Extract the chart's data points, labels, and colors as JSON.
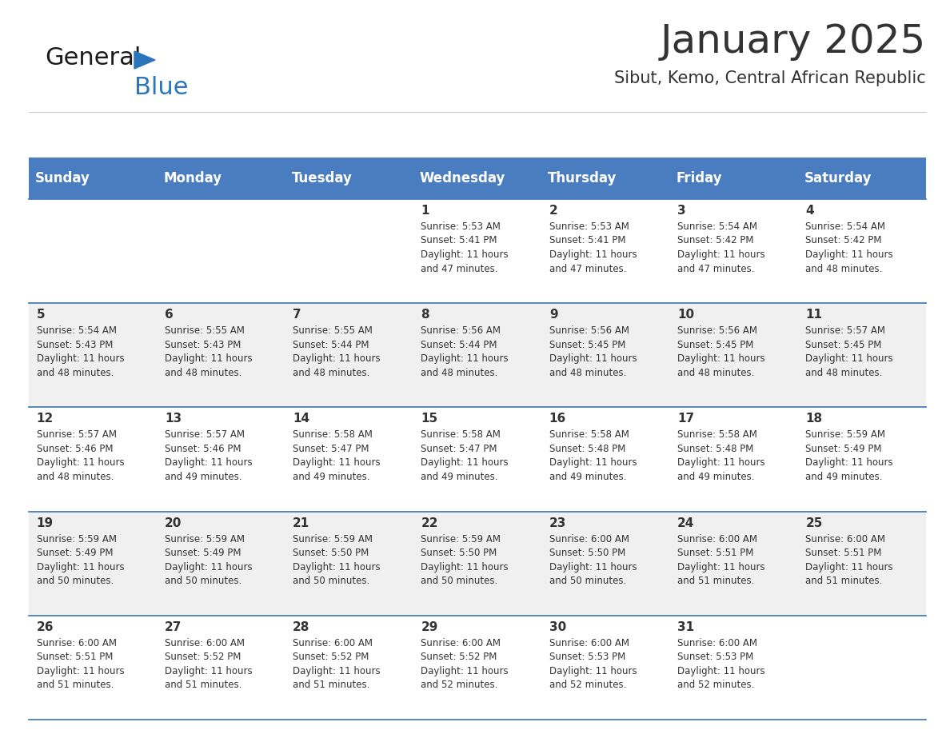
{
  "title": "January 2025",
  "subtitle": "Sibut, Kemo, Central African Republic",
  "header_color": "#4A7DBF",
  "header_text_color": "#FFFFFF",
  "days_of_week": [
    "Sunday",
    "Monday",
    "Tuesday",
    "Wednesday",
    "Thursday",
    "Friday",
    "Saturday"
  ],
  "bg_color": "#FFFFFF",
  "cell_alt_color": "#F0F0F0",
  "cell_border_color": "#4A7DBF",
  "day_num_color": "#333333",
  "text_color": "#333333",
  "calendar": [
    [
      {
        "day": 0,
        "info": ""
      },
      {
        "day": 0,
        "info": ""
      },
      {
        "day": 0,
        "info": ""
      },
      {
        "day": 1,
        "info": "Sunrise: 5:53 AM\nSunset: 5:41 PM\nDaylight: 11 hours\nand 47 minutes."
      },
      {
        "day": 2,
        "info": "Sunrise: 5:53 AM\nSunset: 5:41 PM\nDaylight: 11 hours\nand 47 minutes."
      },
      {
        "day": 3,
        "info": "Sunrise: 5:54 AM\nSunset: 5:42 PM\nDaylight: 11 hours\nand 47 minutes."
      },
      {
        "day": 4,
        "info": "Sunrise: 5:54 AM\nSunset: 5:42 PM\nDaylight: 11 hours\nand 48 minutes."
      }
    ],
    [
      {
        "day": 5,
        "info": "Sunrise: 5:54 AM\nSunset: 5:43 PM\nDaylight: 11 hours\nand 48 minutes."
      },
      {
        "day": 6,
        "info": "Sunrise: 5:55 AM\nSunset: 5:43 PM\nDaylight: 11 hours\nand 48 minutes."
      },
      {
        "day": 7,
        "info": "Sunrise: 5:55 AM\nSunset: 5:44 PM\nDaylight: 11 hours\nand 48 minutes."
      },
      {
        "day": 8,
        "info": "Sunrise: 5:56 AM\nSunset: 5:44 PM\nDaylight: 11 hours\nand 48 minutes."
      },
      {
        "day": 9,
        "info": "Sunrise: 5:56 AM\nSunset: 5:45 PM\nDaylight: 11 hours\nand 48 minutes."
      },
      {
        "day": 10,
        "info": "Sunrise: 5:56 AM\nSunset: 5:45 PM\nDaylight: 11 hours\nand 48 minutes."
      },
      {
        "day": 11,
        "info": "Sunrise: 5:57 AM\nSunset: 5:45 PM\nDaylight: 11 hours\nand 48 minutes."
      }
    ],
    [
      {
        "day": 12,
        "info": "Sunrise: 5:57 AM\nSunset: 5:46 PM\nDaylight: 11 hours\nand 48 minutes."
      },
      {
        "day": 13,
        "info": "Sunrise: 5:57 AM\nSunset: 5:46 PM\nDaylight: 11 hours\nand 49 minutes."
      },
      {
        "day": 14,
        "info": "Sunrise: 5:58 AM\nSunset: 5:47 PM\nDaylight: 11 hours\nand 49 minutes."
      },
      {
        "day": 15,
        "info": "Sunrise: 5:58 AM\nSunset: 5:47 PM\nDaylight: 11 hours\nand 49 minutes."
      },
      {
        "day": 16,
        "info": "Sunrise: 5:58 AM\nSunset: 5:48 PM\nDaylight: 11 hours\nand 49 minutes."
      },
      {
        "day": 17,
        "info": "Sunrise: 5:58 AM\nSunset: 5:48 PM\nDaylight: 11 hours\nand 49 minutes."
      },
      {
        "day": 18,
        "info": "Sunrise: 5:59 AM\nSunset: 5:49 PM\nDaylight: 11 hours\nand 49 minutes."
      }
    ],
    [
      {
        "day": 19,
        "info": "Sunrise: 5:59 AM\nSunset: 5:49 PM\nDaylight: 11 hours\nand 50 minutes."
      },
      {
        "day": 20,
        "info": "Sunrise: 5:59 AM\nSunset: 5:49 PM\nDaylight: 11 hours\nand 50 minutes."
      },
      {
        "day": 21,
        "info": "Sunrise: 5:59 AM\nSunset: 5:50 PM\nDaylight: 11 hours\nand 50 minutes."
      },
      {
        "day": 22,
        "info": "Sunrise: 5:59 AM\nSunset: 5:50 PM\nDaylight: 11 hours\nand 50 minutes."
      },
      {
        "day": 23,
        "info": "Sunrise: 6:00 AM\nSunset: 5:50 PM\nDaylight: 11 hours\nand 50 minutes."
      },
      {
        "day": 24,
        "info": "Sunrise: 6:00 AM\nSunset: 5:51 PM\nDaylight: 11 hours\nand 51 minutes."
      },
      {
        "day": 25,
        "info": "Sunrise: 6:00 AM\nSunset: 5:51 PM\nDaylight: 11 hours\nand 51 minutes."
      }
    ],
    [
      {
        "day": 26,
        "info": "Sunrise: 6:00 AM\nSunset: 5:51 PM\nDaylight: 11 hours\nand 51 minutes."
      },
      {
        "day": 27,
        "info": "Sunrise: 6:00 AM\nSunset: 5:52 PM\nDaylight: 11 hours\nand 51 minutes."
      },
      {
        "day": 28,
        "info": "Sunrise: 6:00 AM\nSunset: 5:52 PM\nDaylight: 11 hours\nand 51 minutes."
      },
      {
        "day": 29,
        "info": "Sunrise: 6:00 AM\nSunset: 5:52 PM\nDaylight: 11 hours\nand 52 minutes."
      },
      {
        "day": 30,
        "info": "Sunrise: 6:00 AM\nSunset: 5:53 PM\nDaylight: 11 hours\nand 52 minutes."
      },
      {
        "day": 31,
        "info": "Sunrise: 6:00 AM\nSunset: 5:53 PM\nDaylight: 11 hours\nand 52 minutes."
      },
      {
        "day": 0,
        "info": ""
      }
    ]
  ],
  "logo_general_color": "#1a1a1a",
  "logo_blue_color": "#2A75BB",
  "logo_triangle_color": "#2A75BB",
  "title_fontsize": 36,
  "subtitle_fontsize": 15,
  "header_fontsize": 12,
  "day_num_fontsize": 11,
  "info_fontsize": 8.5
}
